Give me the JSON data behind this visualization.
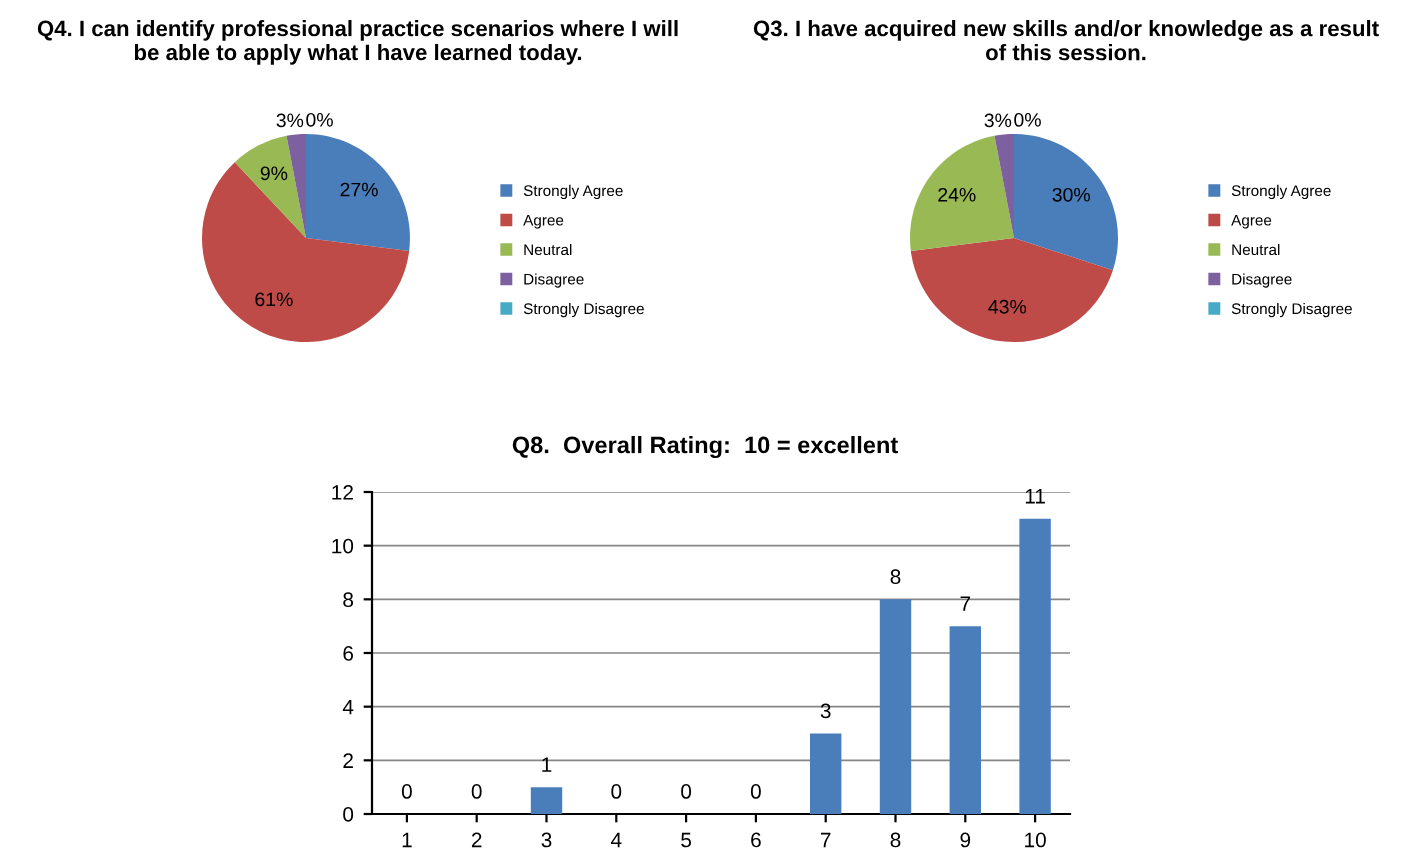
{
  "chart_data": [
    {
      "type": "pie",
      "title": "Q4. I can identify professional practice scenarios where I will\nbe able to apply what I have learned today.",
      "categories": [
        "Strongly Agree",
        "Agree",
        "Neutral",
        "Disagree",
        "Strongly Disagree"
      ],
      "values": [
        27,
        61,
        9,
        3,
        0
      ],
      "value_labels": [
        "27%",
        "61%",
        "9%",
        "3%",
        "0%"
      ],
      "colors": [
        "#4a7ebb",
        "#be4b48",
        "#98b954",
        "#7d60a0",
        "#46aac5"
      ],
      "legend": "right"
    },
    {
      "type": "pie",
      "title": "Q3. I have acquired new skills and/or knowledge as a result\nof this session.",
      "categories": [
        "Strongly Agree",
        "Agree",
        "Neutral",
        "Disagree",
        "Strongly Disagree"
      ],
      "values": [
        30,
        43,
        24,
        3,
        0
      ],
      "value_labels": [
        "30%",
        "43%",
        "24%",
        "3%",
        "0%"
      ],
      "colors": [
        "#4a7ebb",
        "#be4b48",
        "#98b954",
        "#7d60a0",
        "#46aac5"
      ],
      "legend": "right"
    },
    {
      "type": "bar",
      "title": "Q8.  Overall Rating:  10 = excellent",
      "categories": [
        "1",
        "2",
        "3",
        "4",
        "5",
        "6",
        "7",
        "8",
        "9",
        "10"
      ],
      "values": [
        0,
        0,
        1,
        0,
        0,
        0,
        3,
        8,
        7,
        11
      ],
      "color": "#4a7ebb",
      "ylim": [
        0,
        12
      ],
      "yticks": [
        0,
        2,
        4,
        6,
        8,
        10,
        12
      ],
      "grid": "y",
      "data_labels": true
    }
  ]
}
